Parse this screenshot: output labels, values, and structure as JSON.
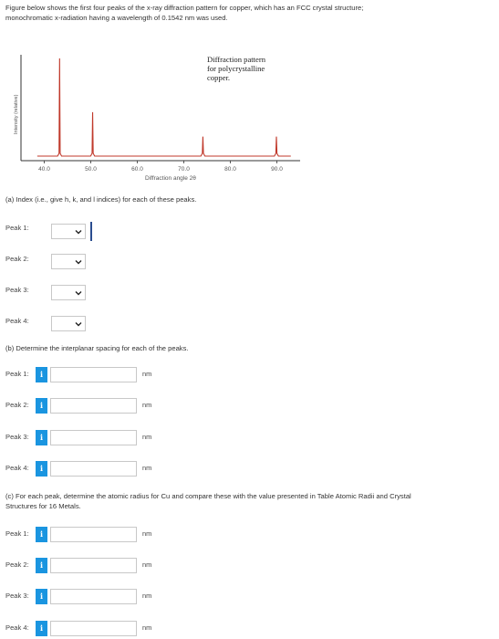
{
  "intro": {
    "line1": "Figure below shows the first four peaks of the x-ray diffraction pattern for copper, which has an FCC crystal structure;",
    "line2": "monochromatic x-radiation having a wavelength of 0.1542 nm was used."
  },
  "chart_data": {
    "type": "line",
    "ylabel": "Intensity (relative)",
    "xlabel": "Diffraction angle 2θ",
    "annotation": [
      "Diffraction pattern",
      "for polycrystalline",
      "copper."
    ],
    "x_ticks": [
      "40.0",
      "50.0",
      "60.0",
      "70.0",
      "80.0",
      "90.0"
    ],
    "xlim": [
      35,
      95
    ],
    "peaks": [
      {
        "x": 43.3,
        "height": 1.0
      },
      {
        "x": 50.4,
        "height": 0.45
      },
      {
        "x": 74.1,
        "height": 0.2
      },
      {
        "x": 89.9,
        "height": 0.2
      }
    ],
    "color": "#c0392b"
  },
  "part_a": {
    "prompt": "(a) Index (i.e., give h, k, and l indices) for each of these peaks.",
    "peaks": [
      "Peak 1:",
      "Peak 2:",
      "Peak 3:",
      "Peak 4:"
    ]
  },
  "part_b": {
    "prompt": "(b) Determine the interplanar spacing for each of the peaks.",
    "peaks": [
      "Peak 1:",
      "Peak 2:",
      "Peak 3:",
      "Peak 4:"
    ],
    "unit": "nm",
    "info": "i"
  },
  "part_c": {
    "prompt_line1": "(c) For each peak, determine the atomic radius for Cu and compare these with the value presented in Table Atomic Radii and Crystal",
    "prompt_line2": "Structures for 16 Metals.",
    "peaks": [
      "Peak 1:",
      "Peak 2:",
      "Peak 3:",
      "Peak 4:"
    ],
    "unit": "nm",
    "info": "i"
  }
}
